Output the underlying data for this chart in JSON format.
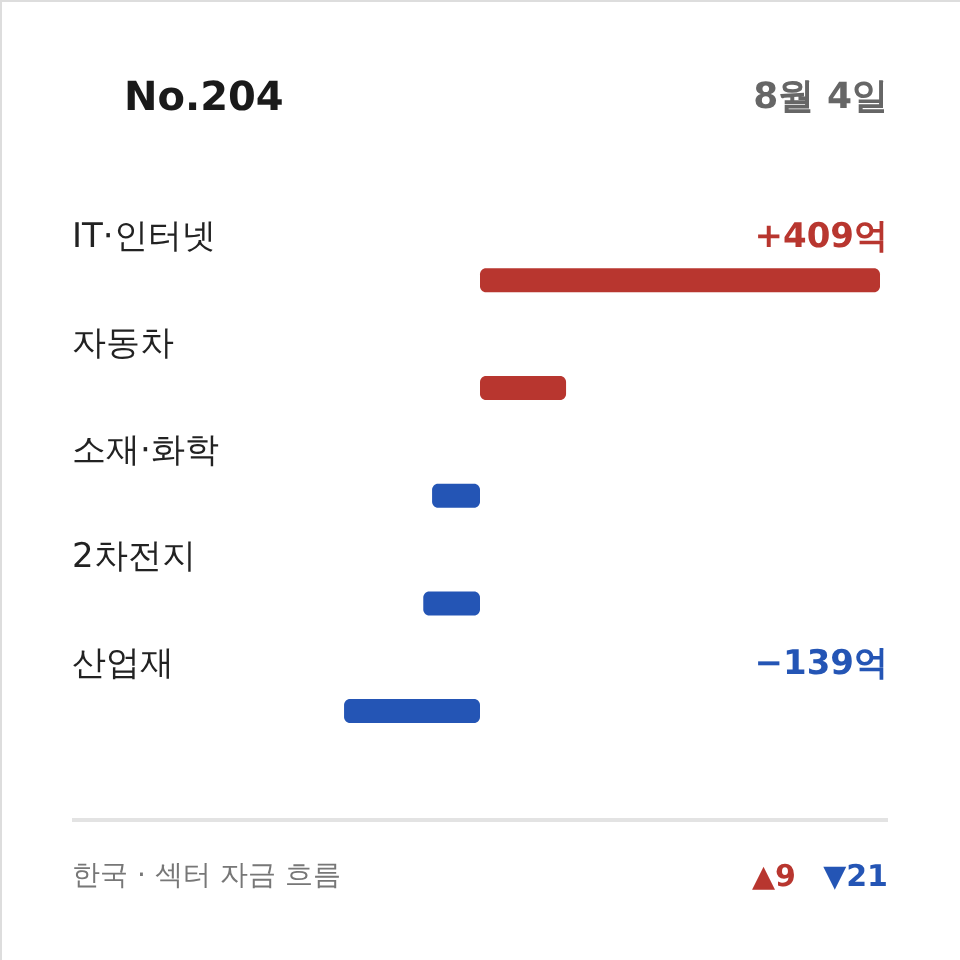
{
  "chart_data": {
    "type": "bar",
    "orientation": "horizontal",
    "title": "No.204",
    "subtitle": "8월 4일",
    "categories": [
      "IT·인터넷",
      "자동차",
      "소재·화학",
      "2차전지",
      "산업재"
    ],
    "values": [
      409,
      88,
      -49,
      -58,
      -139
    ],
    "colors": [
      "#b8362f",
      "#b8362f",
      "#2455b5",
      "#2455b5",
      "#2455b5"
    ],
    "value_labels": [
      "+409억",
      null,
      null,
      null,
      "−139억"
    ],
    "annotations": [
      "한국 · 섹터 자금 흐름",
      "▲9",
      "▼21"
    ]
  }
}
